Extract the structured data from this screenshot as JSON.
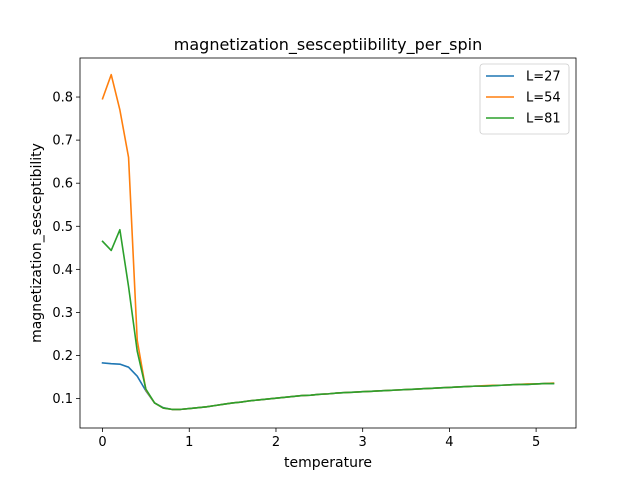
{
  "chart_data": {
    "type": "line",
    "title": "magnetization_sesceptiibility_per_spin",
    "xlabel": "temperature",
    "ylabel": "magnetization_sesceptibility",
    "xlim": [
      -0.26,
      5.46
    ],
    "ylim": [
      0.0318,
      0.8906
    ],
    "xticks": [
      0,
      1,
      2,
      3,
      4,
      5
    ],
    "yticks": [
      0.1,
      0.2,
      0.3,
      0.4,
      0.5,
      0.6,
      0.7,
      0.8
    ],
    "grid": false,
    "legend_position": "top-right",
    "x": [
      0.0,
      0.1,
      0.2,
      0.3,
      0.4,
      0.5,
      0.6,
      0.7,
      0.8,
      0.9,
      1.0,
      1.1,
      1.2,
      1.3,
      1.4,
      1.5,
      1.6,
      1.7,
      1.8,
      1.9,
      2.0,
      2.1,
      2.2,
      2.3,
      2.4,
      2.5,
      2.6,
      2.7,
      2.8,
      2.9,
      3.0,
      3.1,
      3.2,
      3.3,
      3.4,
      3.5,
      3.6,
      3.7,
      3.8,
      3.9,
      4.0,
      4.1,
      4.2,
      4.3,
      4.4,
      4.5,
      4.6,
      4.7,
      4.8,
      4.9,
      5.0,
      5.1,
      5.2
    ],
    "series": [
      {
        "name": "L=27",
        "color": "#1f77b4",
        "values": [
          0.183,
          0.181,
          0.18,
          0.173,
          0.152,
          0.118,
          0.09,
          0.079,
          0.075,
          0.075,
          0.077,
          0.079,
          0.081,
          0.084,
          0.087,
          0.09,
          0.092,
          0.095,
          0.097,
          0.099,
          0.101,
          0.103,
          0.105,
          0.107,
          0.108,
          0.11,
          0.111,
          0.113,
          0.114,
          0.115,
          0.116,
          0.117,
          0.118,
          0.119,
          0.12,
          0.121,
          0.122,
          0.123,
          0.124,
          0.125,
          0.126,
          0.127,
          0.128,
          0.129,
          0.129,
          0.13,
          0.131,
          0.132,
          0.133,
          0.133,
          0.134,
          0.135,
          0.135
        ]
      },
      {
        "name": "L=54",
        "color": "#ff7f0e",
        "values": [
          0.796,
          0.852,
          0.77,
          0.66,
          0.235,
          0.12,
          0.09,
          0.078,
          0.075,
          0.075,
          0.077,
          0.079,
          0.081,
          0.084,
          0.087,
          0.09,
          0.092,
          0.095,
          0.097,
          0.099,
          0.101,
          0.103,
          0.105,
          0.107,
          0.108,
          0.11,
          0.111,
          0.113,
          0.114,
          0.115,
          0.116,
          0.117,
          0.118,
          0.119,
          0.12,
          0.121,
          0.122,
          0.123,
          0.124,
          0.125,
          0.126,
          0.127,
          0.128,
          0.129,
          0.13,
          0.131,
          0.131,
          0.132,
          0.133,
          0.134,
          0.134,
          0.135,
          0.136
        ]
      },
      {
        "name": "L=81",
        "color": "#2ca02c",
        "values": [
          0.465,
          0.444,
          0.492,
          0.36,
          0.21,
          0.122,
          0.09,
          0.078,
          0.075,
          0.075,
          0.077,
          0.079,
          0.081,
          0.084,
          0.087,
          0.09,
          0.092,
          0.095,
          0.097,
          0.099,
          0.101,
          0.103,
          0.105,
          0.107,
          0.108,
          0.11,
          0.111,
          0.113,
          0.114,
          0.115,
          0.116,
          0.117,
          0.118,
          0.119,
          0.12,
          0.121,
          0.122,
          0.123,
          0.124,
          0.125,
          0.126,
          0.127,
          0.128,
          0.129,
          0.129,
          0.13,
          0.131,
          0.132,
          0.133,
          0.133,
          0.134,
          0.135,
          0.135
        ]
      }
    ]
  }
}
